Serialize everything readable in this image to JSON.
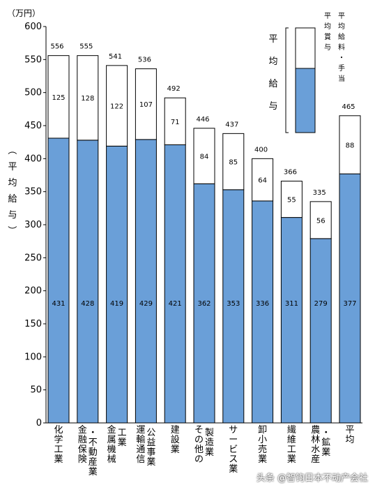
{
  "chart_data": {
    "type": "bar",
    "stacked": true,
    "unit": "（万円）",
    "ylabel": "（平均給与）",
    "ylim": [
      0,
      600
    ],
    "yticks": [
      0,
      50,
      100,
      150,
      200,
      250,
      300,
      350,
      400,
      450,
      500,
      550,
      600
    ],
    "categories": [
      "化学工業",
      "金融・保険・不動産業",
      "金属機械工業",
      "運輸通信・公益事業",
      "建設業",
      "その他の製造業",
      "サービス業",
      "卸小売業",
      "繊維工業",
      "農林水産・鉱業",
      "平均"
    ],
    "category_columns": [
      [
        "化学工業"
      ],
      [
        "金融保険",
        "・不動産業"
      ],
      [
        "金属機械",
        "工業"
      ],
      [
        "運輸通信",
        "公益事業"
      ],
      [
        "建設業"
      ],
      [
        "その他の",
        "製造業"
      ],
      [
        "サービス業"
      ],
      [
        "卸小売業"
      ],
      [
        "繊維工業"
      ],
      [
        "農林水産",
        "・鉱業"
      ],
      [
        "平均"
      ]
    ],
    "totals": [
      556,
      555,
      541,
      536,
      492,
      446,
      437,
      400,
      366,
      335,
      465
    ],
    "series": [
      {
        "name": "平均給料・手当",
        "values": [
          431,
          428,
          419,
          429,
          421,
          362,
          353,
          336,
          311,
          279,
          377
        ],
        "color": "#6a9fd8"
      },
      {
        "name": "平均賞与",
        "values": [
          125,
          128,
          122,
          107,
          71,
          84,
          85,
          64,
          55,
          56,
          88
        ],
        "color": "#ffffff"
      }
    ],
    "legend": {
      "placement": "top-right",
      "label": "平均給与",
      "items": [
        "平均賞与",
        "平均給料・手当"
      ]
    },
    "grid": false
  },
  "watermark": "头条 @智钧日本不动产会社"
}
